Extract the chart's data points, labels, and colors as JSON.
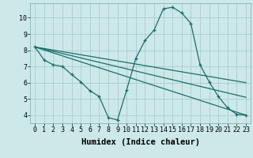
{
  "background_color": "#cce8e8",
  "grid_color": "#aacccc",
  "line_color": "#1a6e6a",
  "xlabel": "Humidex (Indice chaleur)",
  "xlabel_fontsize": 7.5,
  "tick_fontsize": 6,
  "ylim": [
    3.5,
    10.9
  ],
  "xlim": [
    -0.5,
    23.5
  ],
  "yticks": [
    4,
    5,
    6,
    7,
    8,
    9,
    10
  ],
  "xticks": [
    0,
    1,
    2,
    3,
    4,
    5,
    6,
    7,
    8,
    9,
    10,
    11,
    12,
    13,
    14,
    15,
    16,
    17,
    18,
    19,
    20,
    21,
    22,
    23
  ],
  "curve_x": [
    0,
    1,
    2,
    3,
    4,
    5,
    6,
    7,
    8,
    9,
    10,
    11,
    12,
    13,
    14,
    15,
    16,
    17,
    18,
    19,
    20,
    21,
    22,
    23
  ],
  "curve_y": [
    8.2,
    7.4,
    7.1,
    7.0,
    6.5,
    6.05,
    5.5,
    5.15,
    3.85,
    3.7,
    5.55,
    7.5,
    8.6,
    9.25,
    10.55,
    10.65,
    10.3,
    9.65,
    7.1,
    6.05,
    5.15,
    4.45,
    4.05,
    4.0
  ],
  "line1_x": [
    0,
    23
  ],
  "line1_y": [
    8.2,
    6.0
  ],
  "line2_x": [
    0,
    23
  ],
  "line2_y": [
    8.2,
    5.1
  ],
  "line3_x": [
    0,
    23
  ],
  "line3_y": [
    8.2,
    4.0
  ]
}
